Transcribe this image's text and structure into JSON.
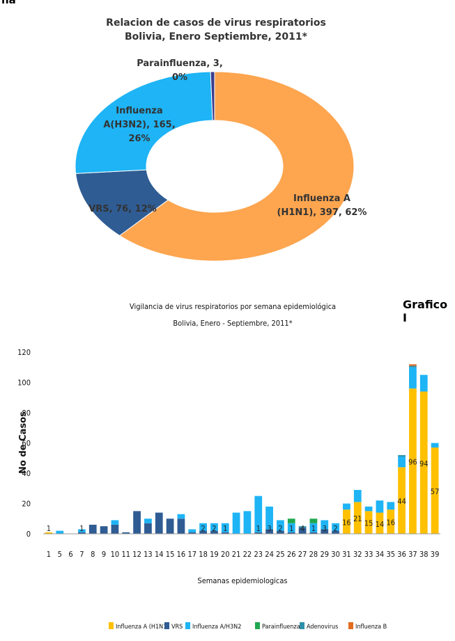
{
  "header_fragment": "na",
  "pie": {
    "title_line1": "Relacion de casos de virus respiratorios",
    "title_line2": "Bolivia, Enero Septiembre, 2011*",
    "slices": [
      {
        "label": "Influenza A (H1N1)",
        "value": 397,
        "percent": "62%",
        "color": "#FDA54F",
        "lines": [
          "Influenza A",
          "(H1N1), 397, 62%"
        ]
      },
      {
        "label": "VRS",
        "value": 76,
        "percent": "12%",
        "color": "#2F5C93",
        "lines": [
          "VRS, 76, 12%"
        ]
      },
      {
        "label": "Influenza A(H3N2)",
        "value": 165,
        "percent": "26%",
        "color": "#1EB4F5",
        "lines": [
          "Influenza",
          "A(H3N2), 165,",
          "26%"
        ]
      },
      {
        "label": "Parainfluenza",
        "value": 3,
        "percent": "0%",
        "color": "#3C3C8E",
        "lines": [
          "Parainfluenza, 3,",
          "0%"
        ]
      }
    ]
  },
  "bar": {
    "title_line1": "Vigilancia de virus  respiratorios por semana epidemiológica",
    "title_line2": "Bolivia,  Enero - Septiembre, 2011*",
    "grafico_label": "Grafico I"
  },
  "chart_data": {
    "type": "bar",
    "stacked": true,
    "title": "Vigilancia de virus  respiratorios por semana epidemiológica",
    "subtitle": "Bolivia,  Enero - Septiembre, 2011*",
    "xlabel": "Semanas epidemiologicas",
    "ylabel": "No de Casos",
    "ylim": [
      0,
      120
    ],
    "yticks": [
      0,
      20,
      40,
      60,
      80,
      100,
      120
    ],
    "categories": [
      "1",
      "5",
      "6",
      "7",
      "8",
      "9",
      "10",
      "11",
      "12",
      "13",
      "14",
      "15",
      "16",
      "17",
      "18",
      "19",
      "20",
      "21",
      "22",
      "23",
      "24",
      "25",
      "26",
      "27",
      "28",
      "29",
      "30",
      "31",
      "32",
      "33",
      "34",
      "35",
      "36",
      "37",
      "38",
      "39"
    ],
    "series": [
      {
        "name": "Influenza A (H1N1)",
        "color": "#FFC000",
        "values": [
          1,
          0,
          0,
          0,
          0,
          0,
          0,
          0,
          0,
          0,
          0,
          0,
          0,
          0,
          0,
          0,
          0,
          0,
          0,
          0,
          0,
          0,
          0,
          0,
          0,
          0,
          0,
          16,
          21,
          15,
          14,
          16,
          44,
          96,
          94,
          57
        ]
      },
      {
        "name": "VRS",
        "color": "#2F5C93",
        "values": [
          0,
          0,
          0,
          1,
          6,
          5,
          6,
          1,
          15,
          7,
          14,
          10,
          10,
          1,
          2,
          2,
          1,
          0,
          0,
          1,
          3,
          2,
          1,
          4,
          1,
          3,
          2,
          0,
          0,
          0,
          0,
          0,
          0,
          0,
          0,
          0
        ]
      },
      {
        "name": "Influenza A/H3N2",
        "color": "#1EB4F5",
        "values": [
          0,
          2,
          0,
          2,
          0,
          0,
          3,
          0,
          0,
          3,
          0,
          0,
          3,
          2,
          5,
          5,
          6,
          14,
          15,
          24,
          15,
          7,
          6,
          0,
          6,
          6,
          5,
          4,
          8,
          3,
          8,
          5,
          7,
          14,
          11,
          3
        ]
      },
      {
        "name": "Parainfluenza",
        "color": "#1FA84F",
        "values": [
          0,
          0,
          0,
          0,
          0,
          0,
          0,
          0,
          0,
          0,
          0,
          0,
          0,
          0,
          0,
          0,
          0,
          0,
          0,
          0,
          0,
          0,
          3,
          0,
          3,
          0,
          0,
          0,
          0,
          0,
          0,
          0,
          0,
          0,
          0,
          0
        ]
      },
      {
        "name": "Adenovirus",
        "color": "#2E8FA8",
        "values": [
          0,
          0,
          0,
          0,
          0,
          0,
          0,
          0,
          0,
          0,
          0,
          0,
          0,
          0,
          0,
          0,
          0,
          0,
          0,
          0,
          0,
          0,
          0,
          1,
          0,
          0,
          0,
          0,
          0,
          0,
          0,
          0,
          1,
          1,
          0,
          0
        ]
      },
      {
        "name": "Influenza B",
        "color": "#E36C1E",
        "values": [
          0,
          0,
          0,
          0,
          0,
          0,
          0,
          0,
          0,
          0,
          0,
          0,
          0,
          0,
          0,
          0,
          0,
          0,
          0,
          0,
          0,
          0,
          0,
          0,
          0,
          0,
          0,
          0,
          0,
          0,
          0,
          0,
          0,
          1,
          0,
          0
        ]
      }
    ],
    "data_labels": [
      {
        "category": "1",
        "text": "1"
      },
      {
        "category": "7",
        "text": "1"
      },
      {
        "category": "18",
        "text": "2"
      },
      {
        "category": "19",
        "text": "2"
      },
      {
        "category": "20",
        "text": "1"
      },
      {
        "category": "23",
        "text": "1"
      },
      {
        "category": "24",
        "text": "3"
      },
      {
        "category": "25",
        "text": "2"
      },
      {
        "category": "26",
        "text": "1"
      },
      {
        "category": "27",
        "text": "4"
      },
      {
        "category": "28",
        "text": "1"
      },
      {
        "category": "29",
        "text": "3"
      },
      {
        "category": "30",
        "text": "2"
      },
      {
        "category": "31",
        "text": "16"
      },
      {
        "category": "32",
        "text": "21"
      },
      {
        "category": "33",
        "text": "15"
      },
      {
        "category": "34",
        "text": "14"
      },
      {
        "category": "35",
        "text": "16"
      },
      {
        "category": "36",
        "text": "44"
      },
      {
        "category": "37",
        "text": "96"
      },
      {
        "category": "38",
        "text": "94"
      },
      {
        "category": "39",
        "text": "57"
      }
    ],
    "legend_position": "bottom"
  }
}
